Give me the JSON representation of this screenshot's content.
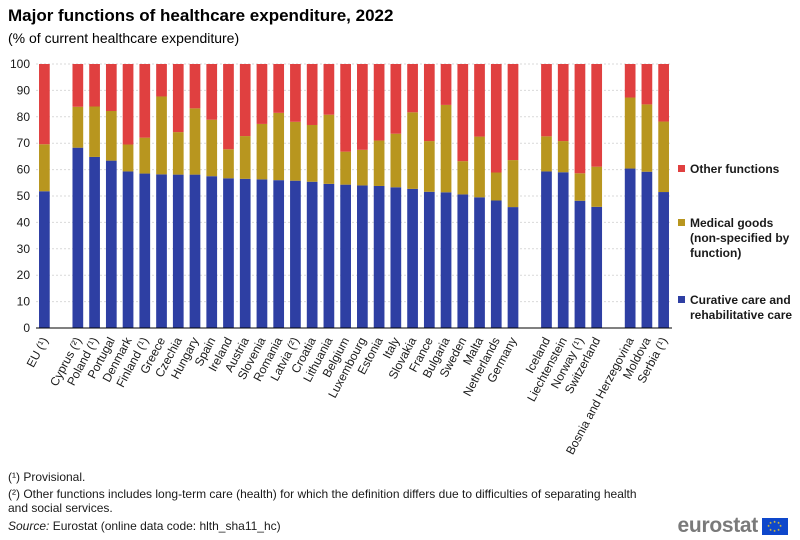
{
  "title": "Major functions of healthcare expenditure, 2022",
  "subtitle": "(% of current healthcare expenditure)",
  "footnotes": {
    "note1": "(¹) Provisional.",
    "note2": "(²) Other functions includes long-term care (health) for which the definition differs due to difficulties of separating health and social services.",
    "source_label": "Source:",
    "source_text": " Eurostat (online data code: hlth_sha11_hc)"
  },
  "logo": {
    "text": "eurostat",
    "icon": "eu-flag-icon"
  },
  "colors": {
    "curative": "#2e3fa3",
    "medical": "#b8961f",
    "other": "#e04040",
    "grid": "#d9d9d9",
    "axis": "#000000"
  },
  "chart_data": {
    "type": "bar",
    "stacked": true,
    "ylim": [
      0,
      100
    ],
    "yticks": [
      0,
      10,
      20,
      30,
      40,
      50,
      60,
      70,
      80,
      90,
      100
    ],
    "grid": true,
    "legend_position": "right",
    "categories": [
      "EU (¹)",
      "",
      "Cyprus (²)",
      "Poland (¹)",
      "Portugal",
      "Denmark",
      "Finland (¹)",
      "Greece",
      "Czechia",
      "Hungary",
      "Spain",
      "Ireland",
      "Austria",
      "Slovenia",
      "Romania",
      "Latvia (²)",
      "Croatia",
      "Lithuania",
      "Belgium",
      "Luxembourg",
      "Estonia",
      "Italy",
      "Slovakia",
      "France",
      "Bulgaria",
      "Sweden",
      "Malta",
      "Netherlands",
      "Germany",
      "",
      "Iceland",
      "Liechtenstein",
      "Norway (¹)",
      "Switzerland",
      "",
      "Bosnia and Herzegovina",
      "Moldova",
      "Serbia (¹)"
    ],
    "series": [
      {
        "name": "Curative care and rehabilitative care",
        "color_key": "curative",
        "values": [
          51.8,
          null,
          68.3,
          64.8,
          63.4,
          59.3,
          58.5,
          58.2,
          58.1,
          58.1,
          57.5,
          56.7,
          56.5,
          56.3,
          56.0,
          55.8,
          55.4,
          54.6,
          54.3,
          54.0,
          53.8,
          53.3,
          52.7,
          51.6,
          51.4,
          50.6,
          49.5,
          48.3,
          45.8,
          null,
          59.3,
          59.0,
          48.2,
          45.9,
          null,
          60.4,
          59.2,
          51.5
        ]
      },
      {
        "name": "Medical goods (non-specified by function)",
        "color_key": "medical",
        "values": [
          17.8,
          null,
          15.5,
          19.1,
          18.8,
          10.2,
          13.6,
          29.5,
          16.1,
          25.1,
          21.4,
          11.0,
          16.2,
          21.0,
          25.5,
          22.3,
          21.5,
          26.2,
          12.5,
          13.5,
          17.2,
          20.3,
          29.0,
          19.2,
          33.1,
          12.6,
          23.0,
          10.6,
          17.8,
          null,
          13.3,
          11.8,
          10.4,
          15.2,
          null,
          26.9,
          25.5,
          26.7
        ]
      },
      {
        "name": "Other functions",
        "color_key": "other",
        "values": [
          30.4,
          null,
          16.2,
          16.1,
          17.8,
          30.5,
          27.9,
          12.3,
          25.8,
          16.8,
          21.1,
          32.3,
          27.3,
          22.7,
          18.5,
          21.9,
          23.1,
          19.2,
          33.2,
          32.5,
          29.0,
          26.4,
          18.3,
          29.2,
          15.5,
          36.8,
          27.5,
          41.1,
          36.4,
          null,
          27.4,
          29.2,
          41.4,
          38.9,
          null,
          12.7,
          15.3,
          21.8
        ]
      }
    ],
    "legend": [
      {
        "key": "other",
        "lines": [
          "Other functions"
        ]
      },
      {
        "key": "medical",
        "lines": [
          "Medical goods",
          "(non-specified by",
          "function)"
        ]
      },
      {
        "key": "curative",
        "lines": [
          "Curative care and",
          "rehabilitative care"
        ]
      }
    ]
  }
}
